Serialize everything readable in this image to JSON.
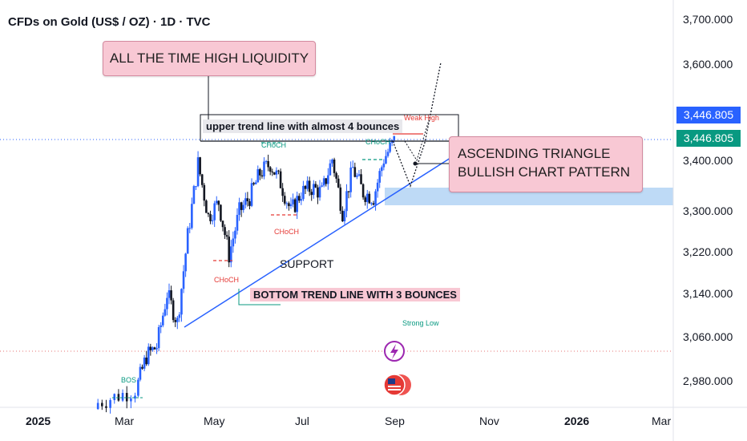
{
  "header": {
    "title": "CFDs on Gold (US$ / OZ) · 1D · TVC"
  },
  "y_axis": {
    "ticks": [
      "3,700.000",
      "3,600.000",
      "3,400.000",
      "3,300.000",
      "3,220.000",
      "3,140.000",
      "3,060.000",
      "2,980.000"
    ]
  },
  "x_axis": {
    "labels": [
      {
        "text": "2025",
        "bold": true
      },
      {
        "text": "Mar",
        "bold": false
      },
      {
        "text": "May",
        "bold": false
      },
      {
        "text": "Jul",
        "bold": false
      },
      {
        "text": "Sep",
        "bold": false
      },
      {
        "text": "Nov",
        "bold": false
      },
      {
        "text": "2026",
        "bold": true
      },
      {
        "text": "Mar",
        "bold": false
      }
    ]
  },
  "price_tags": [
    {
      "text": "3,446.805",
      "color": "#2962ff"
    },
    {
      "text": "3,446.805",
      "color": "#089981"
    }
  ],
  "annotations": {
    "liquidity": "ALL THE TIME HIGH LIQUIDITY",
    "upper_trend": "upper trend line with almost 4 bounces",
    "triangle_line1": "ASCENDING TRIANGLE",
    "triangle_line2": "BULLISH CHART PATTERN",
    "support": "SUPPORT",
    "bottom_trend": "BOTTOM TREND LINE WITH 3 BOUNCES",
    "weak_high": "Weak High",
    "strong_low": "Strong Low",
    "bos": "BOS",
    "choch": "CHoCH"
  },
  "colors": {
    "bull": "#2962ff",
    "bear": "#131722",
    "trend": "#2962ff",
    "choch_red": "#e53935",
    "choch_green": "#089981",
    "zone": "#b3d4f5"
  },
  "chart_data": {
    "type": "candlestick",
    "symbol": "CFDs on Gold (US$ / OZ)",
    "timeframe": "1D",
    "last_price": 3446.805,
    "series": [
      {
        "date": "2025-02-10",
        "close": 2900
      },
      {
        "date": "2025-02-24",
        "close": 2915
      },
      {
        "date": "2025-03-10",
        "close": 2930
      },
      {
        "date": "2025-03-17",
        "close": 3000
      },
      {
        "date": "2025-03-24",
        "close": 3020
      },
      {
        "date": "2025-03-31",
        "close": 3130
      },
      {
        "date": "2025-04-07",
        "close": 3070
      },
      {
        "date": "2025-04-14",
        "close": 3250
      },
      {
        "date": "2025-04-21",
        "close": 3400
      },
      {
        "date": "2025-04-28",
        "close": 3290
      },
      {
        "date": "2025-05-05",
        "close": 3320
      },
      {
        "date": "2025-05-12",
        "close": 3210
      },
      {
        "date": "2025-05-19",
        "close": 3300
      },
      {
        "date": "2025-05-26",
        "close": 3330
      },
      {
        "date": "2025-06-02",
        "close": 3380
      },
      {
        "date": "2025-06-09",
        "close": 3400
      },
      {
        "date": "2025-06-16",
        "close": 3360
      },
      {
        "date": "2025-06-23",
        "close": 3300
      },
      {
        "date": "2025-06-30",
        "close": 3340
      },
      {
        "date": "2025-07-07",
        "close": 3350
      },
      {
        "date": "2025-07-14",
        "close": 3340
      },
      {
        "date": "2025-07-21",
        "close": 3410
      },
      {
        "date": "2025-07-28",
        "close": 3300
      },
      {
        "date": "2025-08-04",
        "close": 3390
      },
      {
        "date": "2025-08-11",
        "close": 3340
      },
      {
        "date": "2025-08-18",
        "close": 3330
      },
      {
        "date": "2025-08-25",
        "close": 3410
      },
      {
        "date": "2025-09-01",
        "close": 3446.805
      }
    ],
    "levels": {
      "upper_trend": 3450,
      "demand_zone": [
        3320,
        3350
      ],
      "projection_target": 3600
    }
  }
}
